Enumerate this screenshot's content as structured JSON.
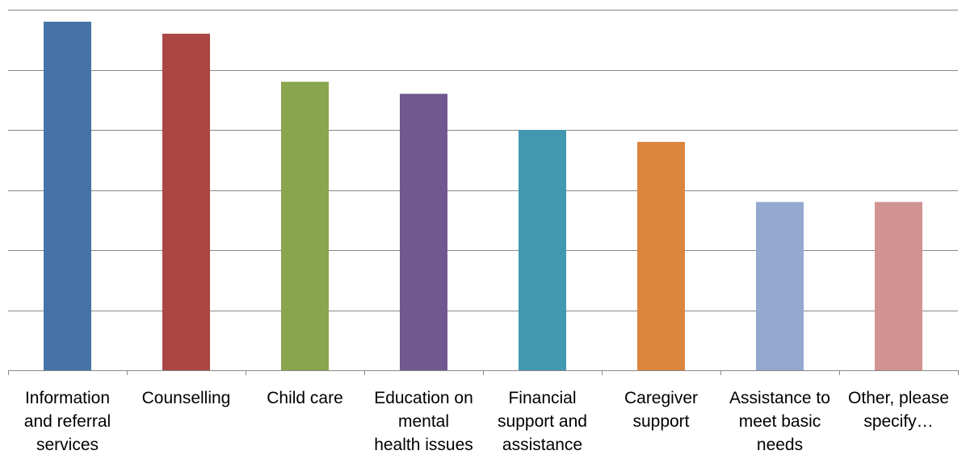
{
  "chart_data": {
    "type": "bar",
    "categories": [
      "Information\nand referral\nservices",
      "Counselling",
      "Child care",
      "Education on\nmental\nhealth issues",
      "Financial\nsupport and\nassistance",
      "Caregiver\nsupport",
      "Assistance to\nmeet basic\nneeds",
      "Other, please\nspecify…"
    ],
    "values": [
      29,
      28,
      24,
      23,
      20,
      19,
      14,
      14
    ],
    "colors": [
      "#4573a7",
      "#aa4643",
      "#89a54e",
      "#71588f",
      "#4198af",
      "#db843d",
      "#93a9cf",
      "#d09392"
    ],
    "ylim": [
      0,
      30
    ],
    "gridlines": [
      0,
      5,
      10,
      15,
      20,
      25,
      30
    ],
    "grid": true,
    "title": "",
    "xlabel": "",
    "ylabel": "",
    "legend": "none"
  }
}
